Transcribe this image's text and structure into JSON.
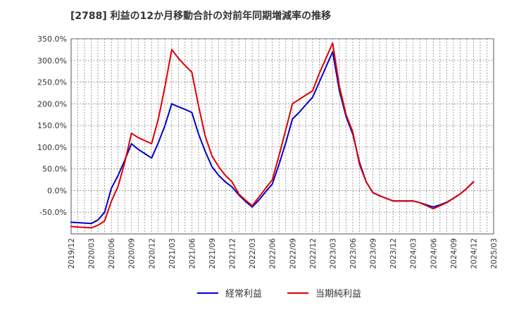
{
  "chart_data": {
    "type": "line",
    "title": "[2788]  利益の12か月移動合計の対前年同期増減率の推移",
    "xlabel": "",
    "ylabel": "",
    "ylim": [
      -100,
      350
    ],
    "y_ticks": [
      -50,
      0,
      50,
      100,
      150,
      200,
      250,
      300,
      350
    ],
    "y_tick_labels": [
      "-50.0%",
      "0.0%",
      "50.0%",
      "100.0%",
      "150.0%",
      "200.0%",
      "250.0%",
      "300.0%",
      "350.0%"
    ],
    "x_tick_labels": [
      "2019/12",
      "2020/03",
      "2020/06",
      "2020/09",
      "2020/12",
      "2021/03",
      "2021/06",
      "2021/09",
      "2021/12",
      "2022/03",
      "2022/06",
      "2022/09",
      "2022/12",
      "2023/03",
      "2023/06",
      "2023/09",
      "2023/12",
      "2024/03",
      "2024/06",
      "2024/09",
      "2024/12",
      "2025/03"
    ],
    "grid": true,
    "legend_position": "bottom",
    "x": [
      "2019/12",
      "2020/01",
      "2020/02",
      "2020/03",
      "2020/04",
      "2020/05",
      "2020/06",
      "2020/07",
      "2020/08",
      "2020/09",
      "2020/10",
      "2020/11",
      "2020/12",
      "2021/01",
      "2021/02",
      "2021/03",
      "2021/04",
      "2021/05",
      "2021/06",
      "2021/07",
      "2021/08",
      "2021/09",
      "2021/10",
      "2021/11",
      "2021/12",
      "2022/01",
      "2022/02",
      "2022/03",
      "2022/04",
      "2022/05",
      "2022/06",
      "2022/07",
      "2022/08",
      "2022/09",
      "2022/10",
      "2022/11",
      "2022/12",
      "2023/01",
      "2023/02",
      "2023/03",
      "2023/04",
      "2023/05",
      "2023/06",
      "2023/07",
      "2023/08",
      "2023/09",
      "2023/10",
      "2023/11",
      "2023/12",
      "2024/01",
      "2024/02",
      "2024/03",
      "2024/04",
      "2024/05",
      "2024/06",
      "2024/07",
      "2024/08",
      "2024/09",
      "2024/10",
      "2024/11",
      "2024/12"
    ],
    "series": [
      {
        "name": "経常利益",
        "color": "#0000cc",
        "values": [
          -73,
          -74,
          -75,
          -76,
          -68,
          -50,
          5,
          35,
          70,
          108,
          95,
          85,
          75,
          110,
          150,
          200,
          193,
          187,
          180,
          130,
          90,
          55,
          35,
          20,
          8,
          -10,
          -25,
          -38,
          -22,
          -3,
          15,
          60,
          110,
          165,
          180,
          198,
          215,
          250,
          285,
          320,
          230,
          170,
          130,
          65,
          20,
          -5,
          -12,
          -18,
          -24,
          -24,
          -24,
          -24,
          -28,
          -33,
          -38,
          -33,
          -27,
          -18,
          -8,
          5,
          20
        ]
      },
      {
        "name": "当期純利益",
        "color": "#dd0000",
        "values": [
          -83,
          -84,
          -85,
          -86,
          -80,
          -70,
          -25,
          10,
          65,
          132,
          122,
          115,
          108,
          165,
          240,
          325,
          305,
          288,
          273,
          195,
          125,
          80,
          55,
          35,
          20,
          -8,
          -22,
          -35,
          -15,
          5,
          25,
          80,
          140,
          200,
          210,
          220,
          230,
          270,
          305,
          340,
          240,
          175,
          135,
          60,
          20,
          -5,
          -12,
          -18,
          -24,
          -24,
          -24,
          -24,
          -28,
          -35,
          -42,
          -35,
          -28,
          -18,
          -8,
          5,
          20
        ]
      }
    ]
  }
}
